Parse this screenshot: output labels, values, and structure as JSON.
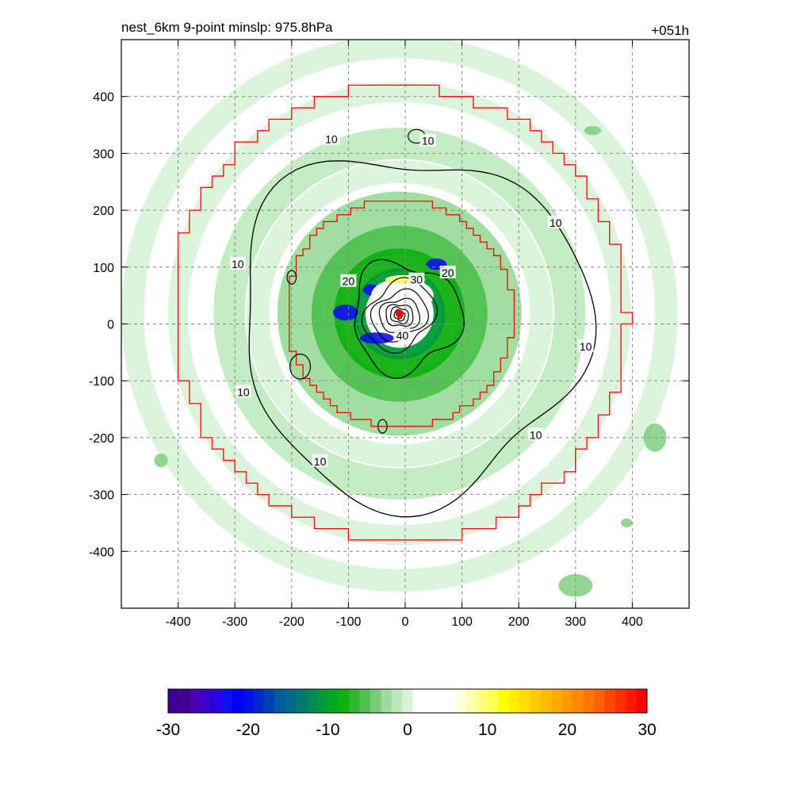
{
  "chart_data": {
    "type": "heatmap",
    "title": "nest_6km  9-point minslp: 975.8hPa",
    "time_label": "+051h",
    "xlabel": "",
    "ylabel": "",
    "xlim": [
      -500,
      500
    ],
    "ylim": [
      -500,
      500
    ],
    "x_ticks": [
      -400,
      -300,
      -200,
      -100,
      0,
      100,
      200,
      300,
      400
    ],
    "y_ticks": [
      400,
      300,
      200,
      100,
      0,
      -100,
      -200,
      -300,
      -400
    ],
    "grid": true,
    "center": [
      -10,
      18
    ],
    "contour_labels": [
      {
        "text": "10",
        "x": -130,
        "y": 325
      },
      {
        "text": "10",
        "x": 40,
        "y": 322
      },
      {
        "text": "10",
        "x": 265,
        "y": 178
      },
      {
        "text": "10",
        "x": -295,
        "y": 105
      },
      {
        "text": "10",
        "x": 318,
        "y": -40
      },
      {
        "text": "10",
        "x": -285,
        "y": -120
      },
      {
        "text": "10",
        "x": 230,
        "y": -195
      },
      {
        "text": "10",
        "x": -150,
        "y": -242
      },
      {
        "text": "20",
        "x": 75,
        "y": 90
      },
      {
        "text": "20",
        "x": -100,
        "y": 75
      },
      {
        "text": "30",
        "x": 20,
        "y": 78
      },
      {
        "text": "40",
        "x": -5,
        "y": -20
      }
    ],
    "colorbar": {
      "min": -30,
      "max": 30,
      "tick_labels": [
        "-30",
        "-20",
        "-10",
        "0",
        "10",
        "20",
        "30"
      ],
      "colors": [
        "#3d0096",
        "#44008f",
        "#4a00b0",
        "#3d00c8",
        "#2a00e0",
        "#1010f0",
        "#0000ff",
        "#0010e8",
        "#0028d0",
        "#0040b8",
        "#005aa0",
        "#006a8a",
        "#007a70",
        "#008a55",
        "#009a38",
        "#00aa20",
        "#10b010",
        "#30b830",
        "#50c050",
        "#78cc78",
        "#9cdc9c",
        "#bde8bd",
        "#d8f2d8",
        "#ffffff",
        "#ffffff",
        "#ffffff",
        "#ffffff",
        "#ffffe0",
        "#ffffb0",
        "#ffff80",
        "#ffff50",
        "#ffff00",
        "#ffee00",
        "#ffdd00",
        "#ffcc00",
        "#ffbb00",
        "#ffaa00",
        "#ff9900",
        "#ff8800",
        "#ff7700",
        "#ff6000",
        "#ff4800",
        "#ff3000",
        "#ff1800",
        "#ff0000"
      ]
    },
    "inner_boundary_halfwidth": 190,
    "outer_boundary_halfwidth": 380
  }
}
